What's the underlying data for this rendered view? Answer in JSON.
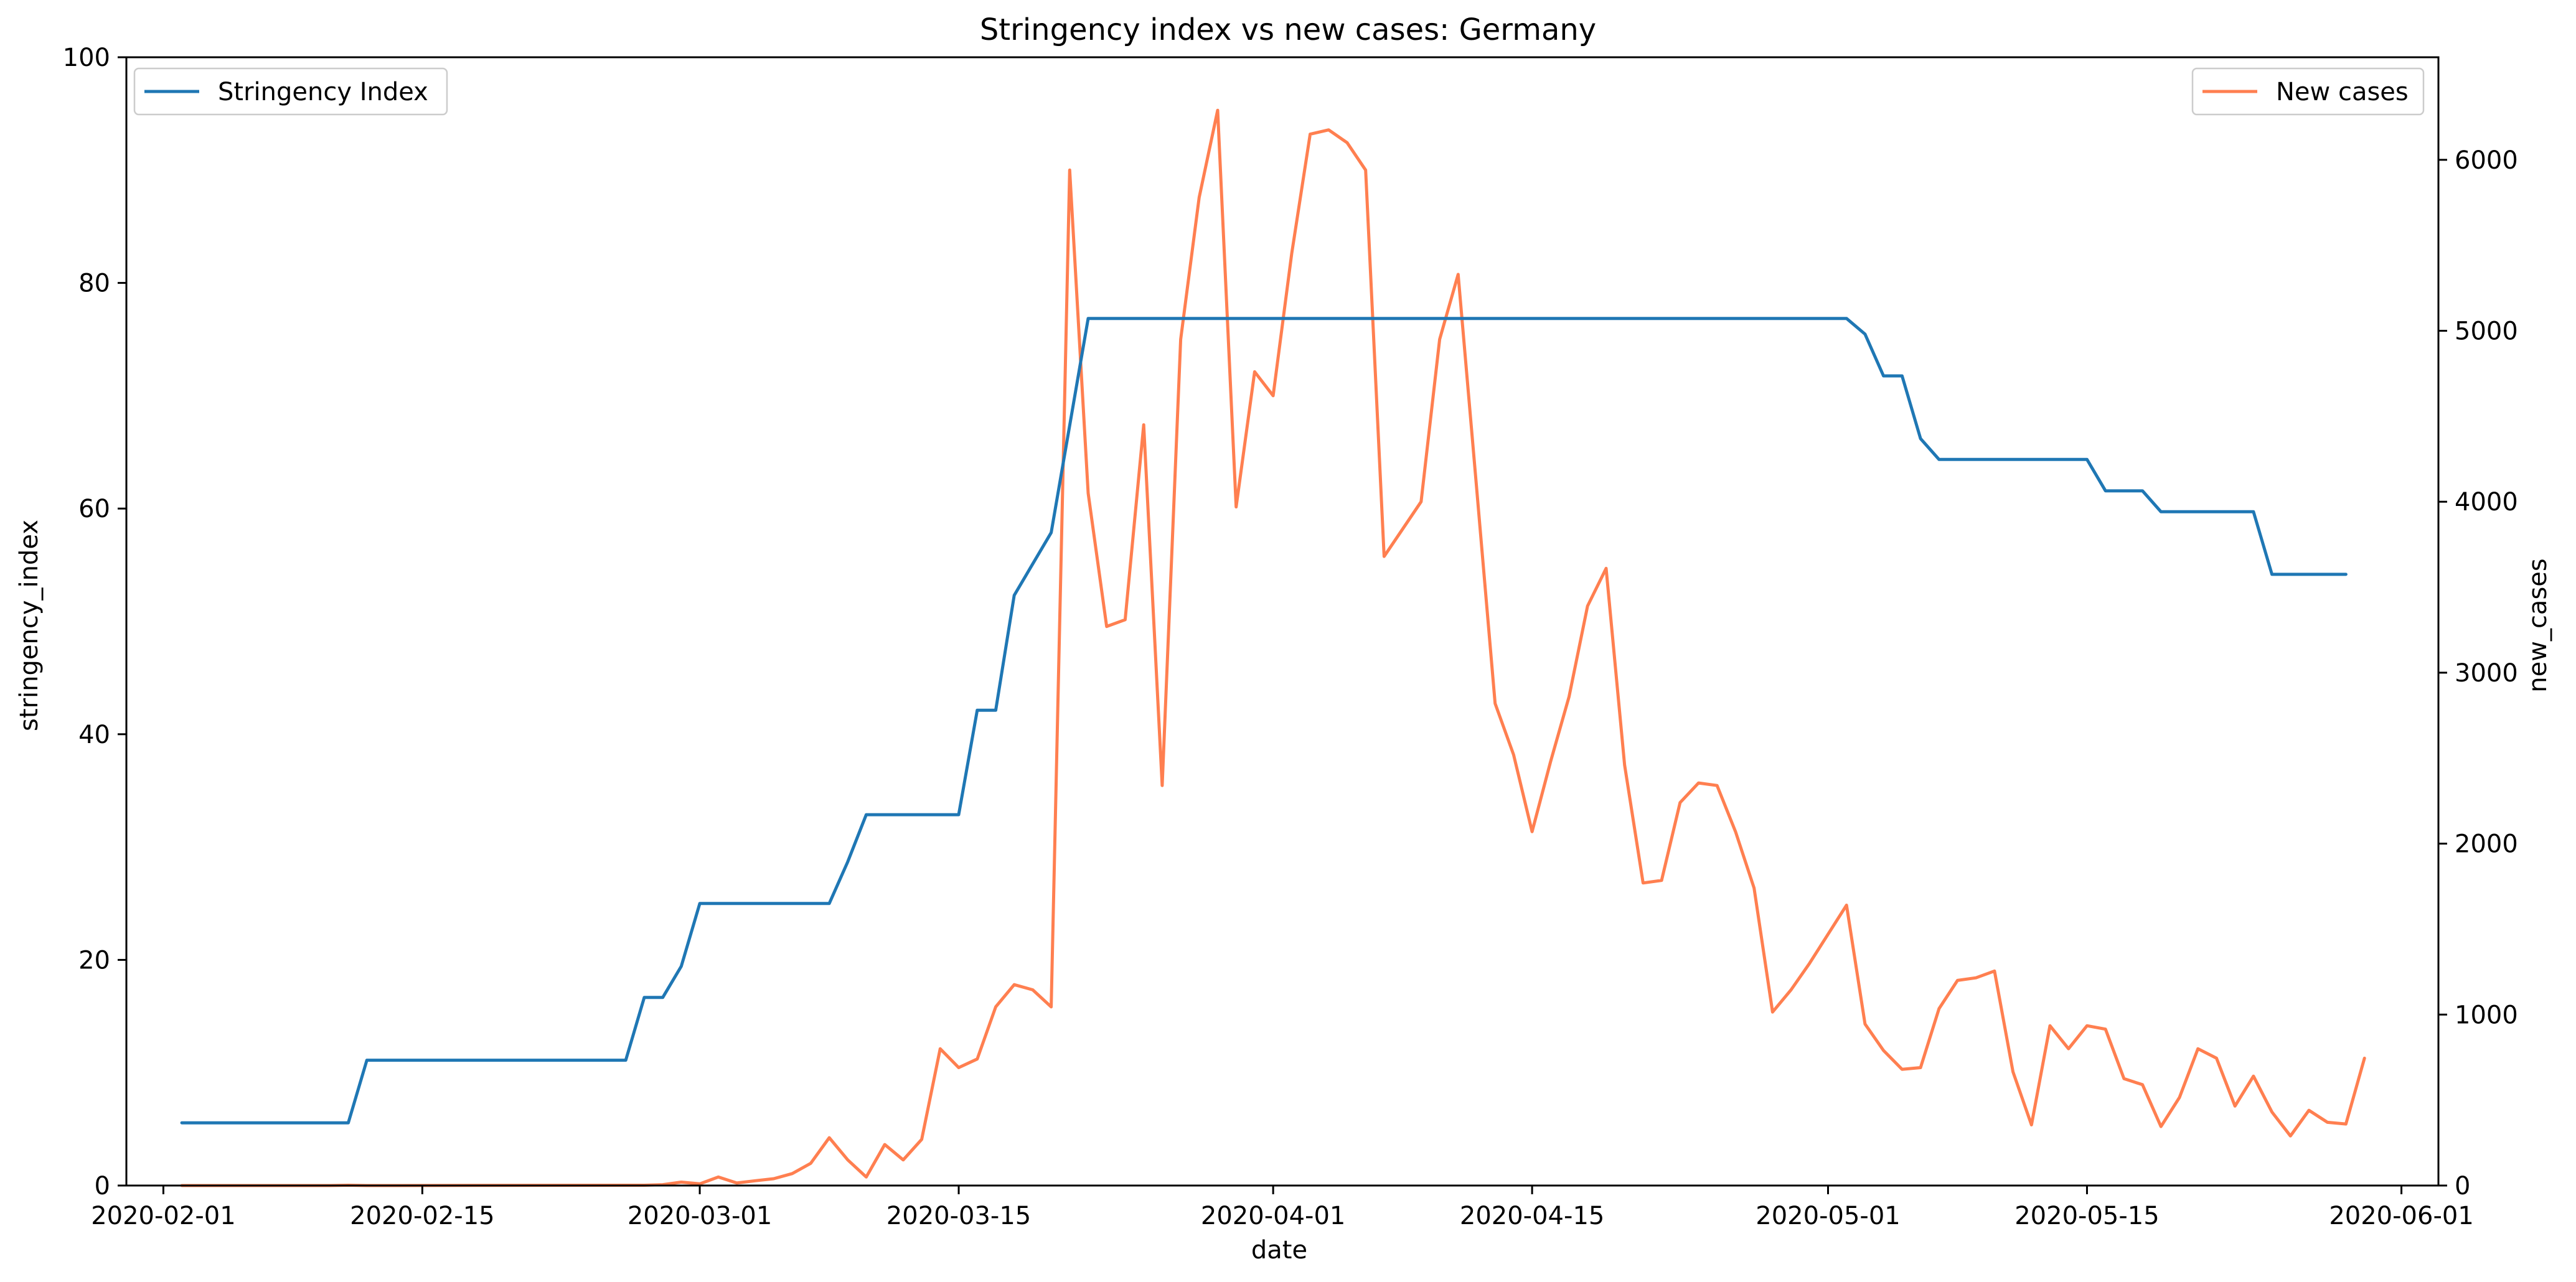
{
  "chart_data": {
    "type": "line",
    "title": "Stringency index vs new cases:  Germany",
    "xlabel": "date",
    "ylabel_left": "stringency_index",
    "ylabel_right": "new_cases",
    "x_ticks": [
      "2020-02-01",
      "2020-02-15",
      "2020-03-01",
      "2020-03-15",
      "2020-04-01",
      "2020-04-15",
      "2020-05-01",
      "2020-05-15",
      "2020-06-01"
    ],
    "xlim": [
      "2020-01-30",
      "2020-06-03"
    ],
    "ylim_left": [
      0,
      100
    ],
    "ylim_right": [
      0,
      6600
    ],
    "y_ticks_left": [
      0,
      20,
      40,
      60,
      80,
      100
    ],
    "y_ticks_right": [
      0,
      1000,
      2000,
      3000,
      4000,
      5000,
      6000
    ],
    "grid": false,
    "series": [
      {
        "name": "Stringency Index",
        "axis": "left",
        "color": "#1f77b4",
        "legend_position": "top-left",
        "points": [
          [
            "2020-02-02",
            5.56
          ],
          [
            "2020-02-11",
            5.56
          ],
          [
            "2020-02-12",
            11.11
          ],
          [
            "2020-02-26",
            11.11
          ],
          [
            "2020-02-27",
            16.67
          ],
          [
            "2020-02-28",
            16.67
          ],
          [
            "2020-02-29",
            19.44
          ],
          [
            "2020-03-01",
            25.0
          ],
          [
            "2020-03-08",
            25.0
          ],
          [
            "2020-03-09",
            28.7
          ],
          [
            "2020-03-10",
            32.87
          ],
          [
            "2020-03-15",
            32.87
          ],
          [
            "2020-03-16",
            42.13
          ],
          [
            "2020-03-17",
            42.13
          ],
          [
            "2020-03-18",
            52.31
          ],
          [
            "2020-03-20",
            57.87
          ],
          [
            "2020-03-22",
            76.85
          ],
          [
            "2020-05-02",
            76.85
          ],
          [
            "2020-05-03",
            75.46
          ],
          [
            "2020-05-04",
            71.76
          ],
          [
            "2020-05-05",
            71.76
          ],
          [
            "2020-05-06",
            66.2
          ],
          [
            "2020-05-07",
            64.35
          ],
          [
            "2020-05-15",
            64.35
          ],
          [
            "2020-05-16",
            61.57
          ],
          [
            "2020-05-18",
            61.57
          ],
          [
            "2020-05-19",
            59.72
          ],
          [
            "2020-05-24",
            59.72
          ],
          [
            "2020-05-25",
            54.17
          ],
          [
            "2020-05-29",
            54.17
          ]
        ]
      },
      {
        "name": "New cases",
        "axis": "right",
        "color": "#ff7f50",
        "legend_position": "top-right",
        "points": [
          [
            "2020-02-02",
            0
          ],
          [
            "2020-02-10",
            0
          ],
          [
            "2020-02-11",
            2
          ],
          [
            "2020-02-12",
            0
          ],
          [
            "2020-02-27",
            2
          ],
          [
            "2020-02-28",
            5
          ],
          [
            "2020-02-29",
            20
          ],
          [
            "2020-03-01",
            10
          ],
          [
            "2020-03-02",
            50
          ],
          [
            "2020-03-03",
            15
          ],
          [
            "2020-03-04",
            28
          ],
          [
            "2020-03-05",
            40
          ],
          [
            "2020-03-06",
            70
          ],
          [
            "2020-03-07",
            130
          ],
          [
            "2020-03-08",
            280
          ],
          [
            "2020-03-09",
            150
          ],
          [
            "2020-03-10",
            50
          ],
          [
            "2020-03-11",
            240
          ],
          [
            "2020-03-12",
            150
          ],
          [
            "2020-03-13",
            270
          ],
          [
            "2020-03-14",
            800
          ],
          [
            "2020-03-15",
            690
          ],
          [
            "2020-03-16",
            740
          ],
          [
            "2020-03-17",
            1045
          ],
          [
            "2020-03-18",
            1175
          ],
          [
            "2020-03-19",
            1145
          ],
          [
            "2020-03-20",
            1045
          ],
          [
            "2020-03-21",
            5940
          ],
          [
            "2020-03-22",
            4050
          ],
          [
            "2020-03-23",
            3270
          ],
          [
            "2020-03-24",
            3310
          ],
          [
            "2020-03-25",
            4450
          ],
          [
            "2020-03-26",
            2340
          ],
          [
            "2020-03-27",
            4950
          ],
          [
            "2020-03-28",
            5780
          ],
          [
            "2020-03-29",
            6290
          ],
          [
            "2020-03-30",
            3970
          ],
          [
            "2020-03-31",
            4760
          ],
          [
            "2020-04-01",
            4620
          ],
          [
            "2020-04-02",
            5450
          ],
          [
            "2020-04-03",
            6150
          ],
          [
            "2020-04-04",
            6175
          ],
          [
            "2020-04-05",
            6100
          ],
          [
            "2020-04-06",
            5940
          ],
          [
            "2020-04-07",
            3680
          ],
          [
            "2020-04-08",
            3840
          ],
          [
            "2020-04-09",
            4000
          ],
          [
            "2020-04-10",
            4950
          ],
          [
            "2020-04-11",
            5330
          ],
          [
            "2020-04-12",
            4080
          ],
          [
            "2020-04-13",
            2820
          ],
          [
            "2020-04-14",
            2520
          ],
          [
            "2020-04-15",
            2070
          ],
          [
            "2020-04-16",
            2480
          ],
          [
            "2020-04-17",
            2860
          ],
          [
            "2020-04-18",
            3390
          ],
          [
            "2020-04-19",
            3610
          ],
          [
            "2020-04-20",
            2460
          ],
          [
            "2020-04-21",
            1770
          ],
          [
            "2020-04-22",
            1785
          ],
          [
            "2020-04-23",
            2240
          ],
          [
            "2020-04-24",
            2355
          ],
          [
            "2020-04-25",
            2340
          ],
          [
            "2020-04-26",
            2070
          ],
          [
            "2020-04-27",
            1740
          ],
          [
            "2020-04-28",
            1015
          ],
          [
            "2020-04-29",
            1145
          ],
          [
            "2020-04-30",
            1300
          ],
          [
            "2020-05-01",
            1470
          ],
          [
            "2020-05-02",
            1640
          ],
          [
            "2020-05-03",
            945
          ],
          [
            "2020-05-04",
            790
          ],
          [
            "2020-05-05",
            680
          ],
          [
            "2020-05-06",
            690
          ],
          [
            "2020-05-07",
            1035
          ],
          [
            "2020-05-08",
            1200
          ],
          [
            "2020-05-09",
            1215
          ],
          [
            "2020-05-10",
            1255
          ],
          [
            "2020-05-11",
            665
          ],
          [
            "2020-05-12",
            355
          ],
          [
            "2020-05-13",
            935
          ],
          [
            "2020-05-14",
            800
          ],
          [
            "2020-05-15",
            935
          ],
          [
            "2020-05-16",
            915
          ],
          [
            "2020-05-17",
            625
          ],
          [
            "2020-05-18",
            590
          ],
          [
            "2020-05-19",
            345
          ],
          [
            "2020-05-20",
            515
          ],
          [
            "2020-05-21",
            800
          ],
          [
            "2020-05-22",
            745
          ],
          [
            "2020-05-23",
            465
          ],
          [
            "2020-05-24",
            640
          ],
          [
            "2020-05-25",
            430
          ],
          [
            "2020-05-26",
            290
          ],
          [
            "2020-05-27",
            440
          ],
          [
            "2020-05-28",
            370
          ],
          [
            "2020-05-29",
            360
          ],
          [
            "2020-05-30",
            745
          ]
        ]
      }
    ]
  }
}
